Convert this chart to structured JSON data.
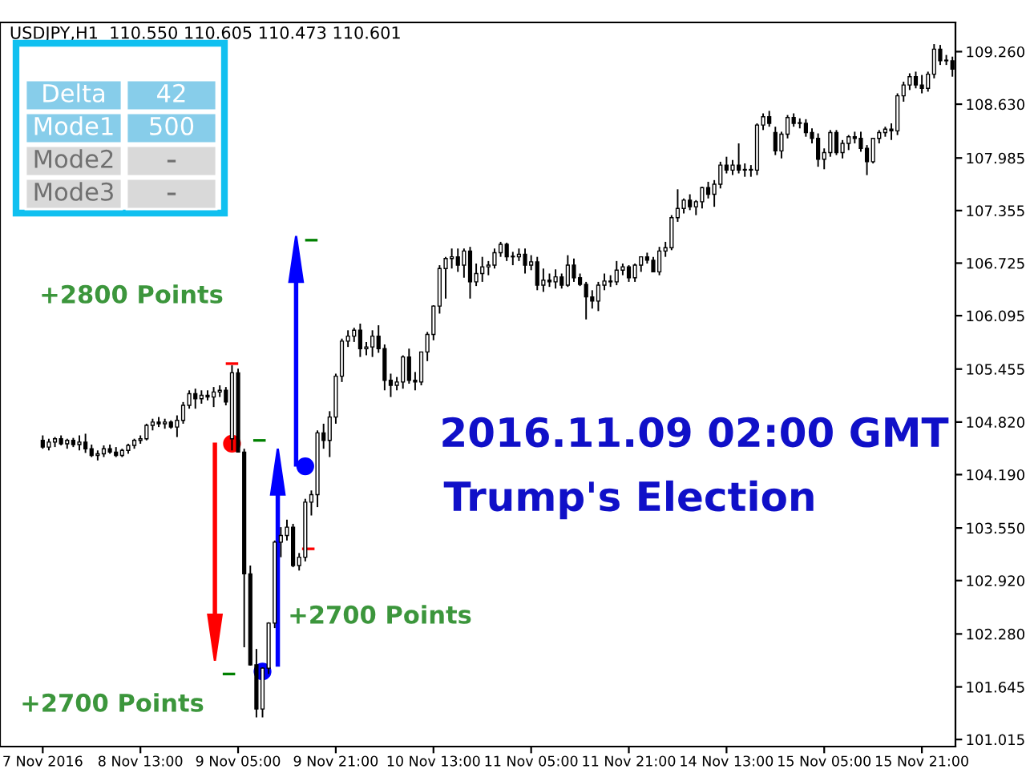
{
  "chart_data": {
    "type": "candlestick",
    "title": "USDJPY,H1  110.550 110.605 110.473 110.601",
    "categories": [
      "7 Nov 2016",
      null,
      null,
      null,
      null,
      null,
      null,
      null,
      null,
      null,
      null,
      null,
      null,
      null,
      null,
      null,
      "8 Nov 13:00",
      null,
      null,
      null,
      null,
      null,
      null,
      null,
      null,
      null,
      null,
      null,
      null,
      null,
      null,
      null,
      "9 Nov 05:00",
      null,
      null,
      null,
      null,
      null,
      null,
      null,
      null,
      null,
      null,
      null,
      null,
      null,
      null,
      null,
      "9 Nov 21:00",
      null,
      null,
      null,
      null,
      null,
      null,
      null,
      null,
      null,
      null,
      null,
      null,
      null,
      null,
      null,
      "10 Nov 13:00",
      null,
      null,
      null,
      null,
      null,
      null,
      null,
      null,
      null,
      null,
      null,
      null,
      null,
      null,
      null,
      "11 Nov 05:00",
      null,
      null,
      null,
      null,
      null,
      null,
      null,
      null,
      null,
      null,
      null,
      null,
      null,
      null,
      null,
      "11 Nov 21:00",
      null,
      null,
      null,
      null,
      null,
      null,
      null,
      null,
      null,
      null,
      null,
      null,
      null,
      null,
      null,
      "14 Nov 13:00",
      null,
      null,
      null,
      null,
      null,
      null,
      null,
      null,
      null,
      null,
      null,
      null,
      null,
      null,
      null,
      "15 Nov 05:00",
      null,
      null,
      null,
      null,
      null,
      null,
      null,
      null,
      null,
      null,
      null,
      null,
      null,
      null,
      null,
      "15 Nov 21:00",
      null,
      null,
      null,
      null,
      null
    ],
    "ohlc": [
      [
        104.6,
        104.66,
        104.5,
        104.52
      ],
      [
        104.52,
        104.62,
        104.48,
        104.58
      ],
      [
        104.58,
        104.64,
        104.52,
        104.62
      ],
      [
        104.62,
        104.66,
        104.54,
        104.56
      ],
      [
        104.56,
        104.62,
        104.5,
        104.6
      ],
      [
        104.6,
        104.63,
        104.52,
        104.55
      ],
      [
        104.55,
        104.66,
        104.48,
        104.58
      ],
      [
        104.58,
        104.68,
        104.45,
        104.5
      ],
      [
        104.5,
        104.55,
        104.4,
        104.42
      ],
      [
        104.42,
        104.48,
        104.36,
        104.44
      ],
      [
        104.44,
        104.54,
        104.4,
        104.5
      ],
      [
        104.5,
        104.55,
        104.44,
        104.46
      ],
      [
        104.46,
        104.52,
        104.4,
        104.42
      ],
      [
        104.42,
        104.5,
        104.4,
        104.48
      ],
      [
        104.48,
        104.56,
        104.44,
        104.54
      ],
      [
        104.54,
        104.62,
        104.5,
        104.6
      ],
      [
        104.6,
        104.66,
        104.56,
        104.62
      ],
      [
        104.62,
        104.8,
        104.6,
        104.78
      ],
      [
        104.78,
        104.86,
        104.72,
        104.82
      ],
      [
        104.82,
        104.88,
        104.76,
        104.8
      ],
      [
        104.8,
        104.86,
        104.74,
        104.82
      ],
      [
        104.82,
        104.84,
        104.74,
        104.76
      ],
      [
        104.76,
        104.9,
        104.64,
        104.84
      ],
      [
        104.84,
        105.06,
        104.8,
        105.02
      ],
      [
        105.02,
        105.2,
        104.98,
        105.16
      ],
      [
        105.16,
        105.22,
        104.98,
        105.1
      ],
      [
        105.1,
        105.2,
        105.04,
        105.14
      ],
      [
        105.14,
        105.2,
        105.08,
        105.12
      ],
      [
        105.12,
        105.24,
        105.0,
        105.18
      ],
      [
        105.18,
        105.26,
        105.12,
        105.2
      ],
      [
        105.2,
        105.24,
        105.02,
        105.06
      ],
      [
        104.62,
        105.5,
        104.48,
        105.41
      ],
      [
        105.41,
        105.46,
        104.46,
        104.46
      ],
      [
        104.46,
        104.5,
        102.12,
        103.0
      ],
      [
        103.0,
        103.1,
        101.9,
        101.91
      ],
      [
        101.91,
        102.1,
        101.28,
        101.38
      ],
      [
        101.38,
        101.88,
        101.28,
        101.87
      ],
      [
        101.87,
        102.42,
        101.8,
        102.41
      ],
      [
        102.41,
        103.4,
        102.35,
        103.38
      ],
      [
        103.38,
        103.56,
        103.2,
        103.46
      ],
      [
        103.46,
        103.65,
        103.4,
        103.56
      ],
      [
        103.56,
        103.6,
        103.08,
        103.1
      ],
      [
        103.1,
        103.25,
        103.04,
        103.2
      ],
      [
        103.2,
        103.9,
        103.15,
        103.86
      ],
      [
        103.86,
        104.0,
        103.7,
        103.95
      ],
      [
        103.95,
        104.72,
        103.8,
        104.69
      ],
      [
        104.69,
        104.8,
        104.5,
        104.6
      ],
      [
        104.6,
        104.95,
        104.4,
        104.88
      ],
      [
        104.88,
        105.4,
        104.8,
        105.37
      ],
      [
        105.37,
        105.82,
        105.3,
        105.79
      ],
      [
        105.79,
        105.92,
        105.72,
        105.85
      ],
      [
        105.85,
        105.95,
        105.78,
        105.92
      ],
      [
        105.92,
        106.0,
        105.6,
        105.7
      ],
      [
        105.7,
        105.78,
        105.62,
        105.72
      ],
      [
        105.72,
        105.92,
        105.6,
        105.85
      ],
      [
        105.85,
        105.98,
        105.65,
        105.7
      ],
      [
        105.7,
        105.75,
        105.2,
        105.32
      ],
      [
        105.32,
        105.4,
        105.12,
        105.26
      ],
      [
        105.26,
        105.36,
        105.2,
        105.3
      ],
      [
        105.3,
        105.62,
        105.22,
        105.6
      ],
      [
        105.6,
        105.7,
        105.28,
        105.32
      ],
      [
        105.32,
        105.42,
        105.2,
        105.3
      ],
      [
        105.3,
        105.66,
        105.26,
        105.66
      ],
      [
        105.66,
        105.9,
        105.55,
        105.87
      ],
      [
        105.87,
        106.22,
        105.8,
        106.21
      ],
      [
        106.21,
        106.7,
        106.12,
        106.66
      ],
      [
        106.66,
        106.8,
        106.3,
        106.78
      ],
      [
        106.78,
        106.9,
        106.66,
        106.8
      ],
      [
        106.8,
        106.9,
        106.62,
        106.7
      ],
      [
        106.7,
        106.9,
        106.55,
        106.87
      ],
      [
        106.87,
        106.92,
        106.3,
        106.5
      ],
      [
        106.5,
        106.72,
        106.45,
        106.6
      ],
      [
        106.6,
        106.8,
        106.5,
        106.68
      ],
      [
        106.68,
        106.75,
        106.58,
        106.7
      ],
      [
        106.7,
        106.9,
        106.66,
        106.85
      ],
      [
        106.85,
        106.98,
        106.8,
        106.95
      ],
      [
        106.95,
        106.97,
        106.75,
        106.8
      ],
      [
        106.8,
        106.86,
        106.7,
        106.8
      ],
      [
        106.8,
        106.9,
        106.75,
        106.83
      ],
      [
        106.83,
        106.9,
        106.6,
        106.7
      ],
      [
        106.7,
        106.82,
        106.64,
        106.74
      ],
      [
        106.74,
        106.8,
        106.4,
        106.46
      ],
      [
        106.46,
        106.66,
        106.38,
        106.52
      ],
      [
        106.52,
        106.6,
        106.44,
        106.5
      ],
      [
        106.5,
        106.65,
        106.42,
        106.56
      ],
      [
        106.56,
        106.6,
        106.42,
        106.46
      ],
      [
        106.46,
        106.82,
        106.44,
        106.7
      ],
      [
        106.7,
        106.78,
        106.5,
        106.55
      ],
      [
        106.55,
        106.6,
        106.45,
        106.47
      ],
      [
        106.47,
        106.5,
        106.05,
        106.32
      ],
      [
        106.32,
        106.4,
        106.18,
        106.27
      ],
      [
        106.27,
        106.5,
        106.15,
        106.46
      ],
      [
        106.46,
        106.6,
        106.4,
        106.51
      ],
      [
        106.51,
        106.58,
        106.44,
        106.5
      ],
      [
        106.5,
        106.75,
        106.46,
        106.64
      ],
      [
        106.64,
        106.72,
        106.58,
        106.68
      ],
      [
        106.68,
        106.7,
        106.5,
        106.55
      ],
      [
        106.55,
        106.72,
        106.5,
        106.7
      ],
      [
        106.7,
        106.8,
        106.62,
        106.8
      ],
      [
        106.8,
        106.85,
        106.72,
        106.76
      ],
      [
        106.76,
        106.8,
        106.62,
        106.62
      ],
      [
        106.62,
        106.92,
        106.58,
        106.87
      ],
      [
        106.87,
        106.98,
        106.8,
        106.91
      ],
      [
        106.91,
        107.3,
        106.88,
        107.27
      ],
      [
        107.27,
        107.61,
        107.22,
        107.38
      ],
      [
        107.38,
        107.5,
        107.32,
        107.48
      ],
      [
        107.48,
        107.55,
        107.36,
        107.4
      ],
      [
        107.4,
        107.48,
        107.3,
        107.46
      ],
      [
        107.46,
        107.64,
        107.38,
        107.63
      ],
      [
        107.63,
        107.7,
        107.5,
        107.55
      ],
      [
        107.55,
        107.72,
        107.4,
        107.67
      ],
      [
        107.67,
        107.94,
        107.62,
        107.9
      ],
      [
        107.9,
        108.0,
        107.8,
        107.84
      ],
      [
        107.84,
        107.96,
        107.78,
        107.9
      ],
      [
        107.9,
        108.16,
        107.8,
        107.84
      ],
      [
        107.84,
        107.92,
        107.76,
        107.84
      ],
      [
        107.84,
        107.9,
        107.76,
        107.84
      ],
      [
        107.84,
        108.4,
        107.78,
        108.38
      ],
      [
        108.38,
        108.52,
        108.32,
        108.48
      ],
      [
        108.48,
        108.55,
        108.36,
        108.4
      ],
      [
        108.29,
        108.36,
        108.02,
        108.07
      ],
      [
        108.07,
        108.3,
        107.98,
        108.27
      ],
      [
        108.27,
        108.5,
        108.22,
        108.47
      ],
      [
        108.47,
        108.52,
        108.36,
        108.4
      ],
      [
        108.4,
        108.46,
        108.34,
        108.4
      ],
      [
        108.4,
        108.45,
        108.24,
        108.29
      ],
      [
        108.29,
        108.34,
        108.16,
        108.22
      ],
      [
        108.22,
        108.28,
        107.88,
        107.97
      ],
      [
        107.97,
        108.1,
        107.85,
        108.05
      ],
      [
        108.05,
        108.32,
        108.0,
        108.29
      ],
      [
        108.29,
        108.32,
        108.02,
        108.05
      ],
      [
        108.05,
        108.2,
        107.98,
        108.16
      ],
      [
        108.16,
        108.26,
        108.08,
        108.24
      ],
      [
        108.24,
        108.3,
        108.16,
        108.22
      ],
      [
        108.22,
        108.3,
        108.06,
        108.1
      ],
      [
        108.1,
        108.14,
        107.78,
        107.94
      ],
      [
        107.94,
        108.22,
        107.92,
        108.22
      ],
      [
        108.22,
        108.32,
        108.16,
        108.29
      ],
      [
        108.29,
        108.36,
        108.24,
        108.33
      ],
      [
        108.33,
        108.4,
        108.2,
        108.31
      ],
      [
        108.31,
        108.76,
        108.26,
        108.73
      ],
      [
        108.73,
        108.9,
        108.66,
        108.86
      ],
      [
        108.86,
        109.0,
        108.8,
        108.96
      ],
      [
        108.96,
        109.02,
        108.82,
        108.86
      ],
      [
        108.86,
        108.98,
        108.76,
        108.82
      ],
      [
        108.82,
        109.02,
        108.78,
        108.99
      ],
      [
        108.99,
        109.35,
        108.94,
        109.29
      ],
      [
        109.29,
        109.34,
        109.1,
        109.15
      ],
      [
        109.15,
        109.22,
        109.1,
        109.15
      ],
      [
        109.15,
        109.2,
        108.96,
        109.05
      ]
    ],
    "ylim": [
      100.93,
      109.61
    ],
    "yticks": [
      {
        "value": 109.26,
        "label": "109.260"
      },
      {
        "value": 108.63,
        "label": "108.630"
      },
      {
        "value": 107.985,
        "label": "107.985"
      },
      {
        "value": 107.355,
        "label": "107.355"
      },
      {
        "value": 106.725,
        "label": "106.725"
      },
      {
        "value": 106.095,
        "label": "106.095"
      },
      {
        "value": 105.455,
        "label": "105.455"
      },
      {
        "value": 104.82,
        "label": "104.820"
      },
      {
        "value": 104.19,
        "label": "104.190"
      },
      {
        "value": 103.55,
        "label": "103.550"
      },
      {
        "value": 102.92,
        "label": "102.920"
      },
      {
        "value": 102.28,
        "label": "102.280"
      },
      {
        "value": 101.645,
        "label": "101.645"
      },
      {
        "value": 101.015,
        "label": "101.015"
      }
    ],
    "grid": false,
    "annotations": [
      "2016.11.09 02:00 GMT",
      "Trump's Election",
      "+2800 Points",
      "+2700 Points",
      "+2700 Points",
      "Delta",
      "42",
      "Mode1",
      "500",
      "Mode2",
      "-",
      "Mode3",
      "-"
    ]
  }
}
